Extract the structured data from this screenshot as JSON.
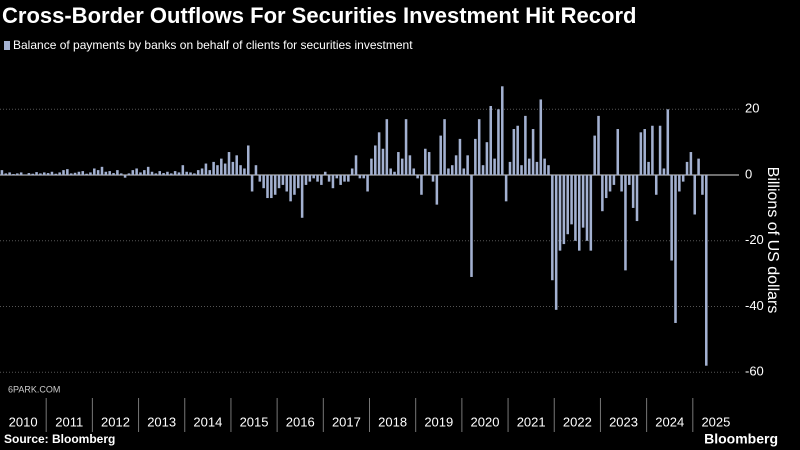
{
  "chart_data": {
    "type": "bar",
    "title": "Cross-Border Outflows For Securities Investment Hit Record",
    "legend": "Balance of payments by banks on behalf of clients for securities investment",
    "y_label": "Billions of US dollars",
    "source": "Source: Bloomberg",
    "brand": "Bloomberg",
    "watermark": "6PARK.COM",
    "color": "#a3b1d1",
    "categories": [
      "2010",
      "2011",
      "2012",
      "2013",
      "2014",
      "2015",
      "2016",
      "2017",
      "2018",
      "2019",
      "2020",
      "2021",
      "2022",
      "2023",
      "2024",
      "2025"
    ],
    "values": [
      [
        1.5,
        0.5,
        0.8,
        0.3,
        0.5,
        0.8,
        0.2,
        0.6,
        0.4,
        0.9,
        0.5,
        0.8
      ],
      [
        0.6,
        1,
        0.4,
        0.8,
        1.5,
        1.8,
        0.5,
        0.7,
        1,
        1.2,
        0.4,
        0.8
      ],
      [
        2,
        1.5,
        2.5,
        1,
        1.2,
        0.6,
        1.5,
        0.5,
        -0.8,
        0.5,
        1.5,
        2
      ],
      [
        0.8,
        1.5,
        2.5,
        1,
        0.5,
        1.2,
        0.6,
        1,
        0.5,
        1.2,
        0.8,
        3
      ],
      [
        1,
        0.8,
        0.5,
        1.5,
        2,
        3.5,
        1.5,
        4,
        3,
        5,
        3.5,
        7
      ],
      [
        4,
        6,
        3,
        2,
        9,
        -5,
        3,
        -2,
        -4,
        -7,
        -7,
        -6
      ],
      [
        -4,
        -3,
        -5,
        -8,
        -6,
        -4,
        -13,
        -3,
        -2,
        -1,
        -2,
        -3
      ],
      [
        1,
        -2,
        -4,
        -1,
        -3,
        -2,
        -2,
        2,
        6,
        -1,
        -1,
        -5
      ],
      [
        5,
        9,
        13,
        8,
        17,
        2,
        1,
        7,
        5,
        17,
        6,
        2
      ],
      [
        -1,
        -6,
        8,
        7,
        -2,
        -9,
        12,
        17,
        2,
        3,
        6,
        11
      ],
      [
        2,
        6,
        -31,
        11,
        17,
        3,
        10,
        21,
        5,
        20,
        27,
        -8
      ],
      [
        4,
        14,
        15,
        3,
        18,
        5,
        14,
        4,
        23,
        5,
        3,
        -32
      ],
      [
        -41,
        -23,
        -21,
        -18,
        -15,
        -20,
        -23,
        -16,
        -20,
        -23,
        12,
        18
      ],
      [
        -11,
        -7,
        -5,
        -3,
        14,
        -5,
        -29,
        -3,
        -10,
        -14,
        13,
        14
      ],
      [
        4,
        15,
        -6,
        15,
        2,
        20,
        -26,
        -45,
        -5,
        -2,
        4,
        7
      ],
      [
        -12,
        5,
        -6,
        -58
      ]
    ],
    "ylim": [
      -66,
      35
    ],
    "yticks": [
      20,
      0,
      -20,
      -40,
      -60
    ],
    "grid": true
  }
}
